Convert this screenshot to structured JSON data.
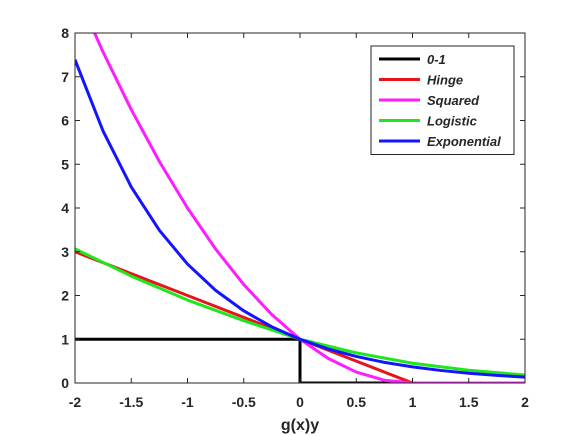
{
  "chart_data": {
    "type": "line",
    "title": "",
    "xlabel": "g(x)y",
    "ylabel": "",
    "xlim": [
      -2,
      2
    ],
    "ylim": [
      0,
      8
    ],
    "x_ticks": [
      "-2",
      "-1.5",
      "-1",
      "-0.5",
      "0",
      "0.5",
      "1",
      "1.5",
      "2"
    ],
    "y_ticks": [
      "0",
      "1",
      "2",
      "3",
      "4",
      "5",
      "6",
      "7",
      "8"
    ],
    "grid": false,
    "legend_position": "top-right",
    "series": [
      {
        "name": "0-1",
        "color": "#000000",
        "x": [
          -2,
          -1.5,
          -1,
          -0.5,
          0,
          0,
          0.5,
          1,
          1.5,
          2
        ],
        "y": [
          1,
          1,
          1,
          1,
          1,
          0,
          0,
          0,
          0,
          0
        ]
      },
      {
        "name": "Hinge",
        "color": "#e8141c",
        "x": [
          -2,
          -1.5,
          -1,
          -0.5,
          0,
          0.5,
          1,
          1.5,
          2
        ],
        "y": [
          3,
          2.5,
          2,
          1.5,
          1,
          0.5,
          0,
          0,
          0
        ]
      },
      {
        "name": "Squared",
        "color": "#ff1dff",
        "x": [
          -2,
          -1.75,
          -1.5,
          -1.25,
          -1,
          -0.75,
          -0.5,
          -0.25,
          0,
          0.25,
          0.5,
          0.75,
          1,
          1.5,
          2
        ],
        "y": [
          9,
          7.5625,
          6.25,
          5.0625,
          4,
          3.0625,
          2.25,
          1.5625,
          1,
          0.5625,
          0.25,
          0.0625,
          0,
          0,
          0
        ]
      },
      {
        "name": "Logistic",
        "color": "#1de81d",
        "x": [
          -2,
          -1.5,
          -1,
          -0.5,
          0,
          0.5,
          1,
          1.5,
          2
        ],
        "y": [
          3.066,
          2.444,
          1.896,
          1.425,
          1,
          0.689,
          0.452,
          0.291,
          0.182
        ]
      },
      {
        "name": "Exponential",
        "color": "#1414ff",
        "x": [
          -2,
          -1.75,
          -1.5,
          -1.25,
          -1,
          -0.75,
          -0.5,
          -0.25,
          0,
          0.25,
          0.5,
          0.75,
          1,
          1.25,
          1.5,
          1.75,
          2
        ],
        "y": [
          7.389,
          5.755,
          4.482,
          3.49,
          2.718,
          2.117,
          1.649,
          1.284,
          1,
          0.779,
          0.607,
          0.472,
          0.368,
          0.287,
          0.223,
          0.174,
          0.135
        ]
      }
    ]
  }
}
